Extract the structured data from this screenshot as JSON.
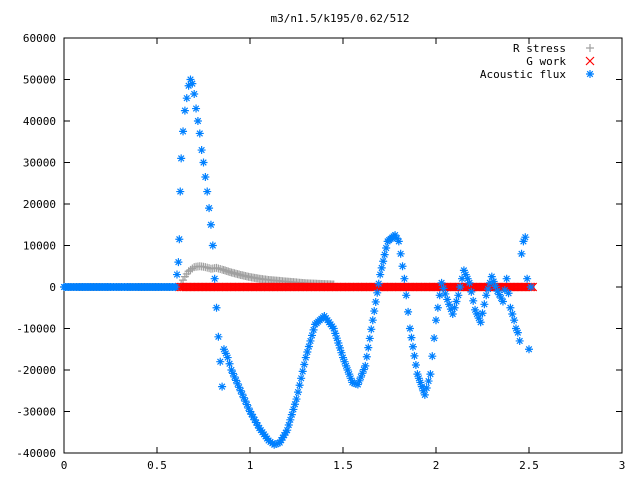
{
  "colors": {
    "r_stress": "#a0a0a0",
    "g_work": "#ff0000",
    "acoustic_flux": "#0080ff",
    "axis": "#000000",
    "background": "#ffffff"
  },
  "chart_data": {
    "type": "scatter",
    "title": "m3/n1.5/k195/0.62/512",
    "xlabel": "",
    "ylabel": "",
    "xlim": [
      0,
      3
    ],
    "ylim": [
      -40000,
      60000
    ],
    "x_ticks": [
      0,
      0.5,
      1,
      1.5,
      2,
      2.5,
      3
    ],
    "x_tick_labels": [
      "0",
      "0.5",
      "1",
      "1.5",
      "2",
      "2.5",
      "3"
    ],
    "y_ticks": [
      -40000,
      -30000,
      -20000,
      -10000,
      0,
      10000,
      20000,
      30000,
      40000,
      50000,
      60000
    ],
    "y_tick_labels": [
      "-40000",
      "-30000",
      "-20000",
      "-10000",
      "0",
      "10000",
      "20000",
      "30000",
      "40000",
      "50000",
      "60000"
    ],
    "grid": false,
    "legend_position": "top-right",
    "series": [
      {
        "name": "R stress",
        "marker": "plus",
        "color": "#a0a0a0",
        "points": [
          [
            0.0,
            0
          ],
          [
            0.3,
            0
          ],
          [
            0.6,
            0
          ],
          [
            0.62,
            0
          ],
          [
            0.63,
            800
          ],
          [
            0.65,
            2500
          ],
          [
            0.67,
            3800
          ],
          [
            0.7,
            4800
          ],
          [
            0.73,
            5000
          ],
          [
            0.76,
            4800
          ],
          [
            0.79,
            4400
          ],
          [
            0.82,
            4600
          ],
          [
            0.85,
            4200
          ],
          [
            0.9,
            3500
          ],
          [
            0.95,
            2900
          ],
          [
            1.0,
            2400
          ],
          [
            1.05,
            2000
          ],
          [
            1.1,
            1700
          ],
          [
            1.15,
            1500
          ],
          [
            1.2,
            1300
          ],
          [
            1.25,
            1100
          ],
          [
            1.3,
            900
          ],
          [
            1.35,
            800
          ],
          [
            1.4,
            700
          ],
          [
            1.45,
            600
          ]
        ]
      },
      {
        "name": "G work",
        "marker": "cross",
        "color": "#ff0000",
        "points": [
          [
            0.62,
            0
          ],
          [
            0.8,
            0
          ],
          [
            1.0,
            0
          ],
          [
            1.2,
            0
          ],
          [
            1.4,
            0
          ],
          [
            1.6,
            0
          ],
          [
            1.8,
            0
          ],
          [
            2.0,
            0
          ],
          [
            2.2,
            0
          ],
          [
            2.4,
            0
          ],
          [
            2.52,
            0
          ]
        ]
      },
      {
        "name": "Acoustic flux",
        "marker": "asterisk",
        "color": "#0080ff",
        "points": [
          [
            0.0,
            0
          ],
          [
            0.1,
            0
          ],
          [
            0.2,
            0
          ],
          [
            0.3,
            0
          ],
          [
            0.4,
            0
          ],
          [
            0.5,
            0
          ],
          [
            0.6,
            0
          ],
          [
            0.615,
            6000
          ],
          [
            0.62,
            11500
          ],
          [
            0.625,
            23000
          ],
          [
            0.63,
            31000
          ],
          [
            0.64,
            37500
          ],
          [
            0.65,
            42500
          ],
          [
            0.66,
            45500
          ],
          [
            0.67,
            48500
          ],
          [
            0.68,
            50000
          ],
          [
            0.69,
            49000
          ],
          [
            0.7,
            46500
          ],
          [
            0.71,
            43000
          ],
          [
            0.72,
            40000
          ],
          [
            0.73,
            37000
          ],
          [
            0.74,
            33000
          ],
          [
            0.75,
            30000
          ],
          [
            0.76,
            26500
          ],
          [
            0.77,
            23000
          ],
          [
            0.78,
            19000
          ],
          [
            0.79,
            15000
          ],
          [
            0.8,
            10000
          ],
          [
            0.81,
            2000
          ],
          [
            0.82,
            -5000
          ],
          [
            0.83,
            -12000
          ],
          [
            0.84,
            -18000
          ],
          [
            0.85,
            -24000
          ],
          [
            0.86,
            -15000
          ],
          [
            0.88,
            -17000
          ],
          [
            0.9,
            -20000
          ],
          [
            0.95,
            -25000
          ],
          [
            1.0,
            -30000
          ],
          [
            1.05,
            -34000
          ],
          [
            1.1,
            -37000
          ],
          [
            1.13,
            -38000
          ],
          [
            1.16,
            -37500
          ],
          [
            1.2,
            -34500
          ],
          [
            1.25,
            -27000
          ],
          [
            1.3,
            -17000
          ],
          [
            1.35,
            -9000
          ],
          [
            1.4,
            -7000
          ],
          [
            1.45,
            -10000
          ],
          [
            1.5,
            -17000
          ],
          [
            1.55,
            -23000
          ],
          [
            1.58,
            -23500
          ],
          [
            1.62,
            -19000
          ],
          [
            1.66,
            -8000
          ],
          [
            1.7,
            3000
          ],
          [
            1.74,
            11000
          ],
          [
            1.78,
            12500
          ],
          [
            1.8,
            11000
          ],
          [
            1.83,
            2000
          ],
          [
            1.86,
            -10000
          ],
          [
            1.9,
            -21000
          ],
          [
            1.94,
            -26000
          ],
          [
            1.97,
            -21000
          ],
          [
            2.0,
            -8000
          ],
          [
            2.03,
            1000
          ],
          [
            2.06,
            -3000
          ],
          [
            2.09,
            -6500
          ],
          [
            2.12,
            -2000
          ],
          [
            2.15,
            4000
          ],
          [
            2.18,
            1000
          ],
          [
            2.21,
            -5500
          ],
          [
            2.24,
            -8500
          ],
          [
            2.27,
            -2000
          ],
          [
            2.3,
            2500
          ],
          [
            2.33,
            -1000
          ],
          [
            2.36,
            -3500
          ],
          [
            2.38,
            2000
          ],
          [
            2.4,
            -5000
          ],
          [
            2.42,
            -8000
          ],
          [
            2.43,
            -10000
          ],
          [
            2.44,
            -11000
          ],
          [
            2.45,
            -13000
          ],
          [
            2.46,
            8000
          ],
          [
            2.47,
            11000
          ],
          [
            2.48,
            12000
          ],
          [
            2.49,
            2000
          ],
          [
            2.5,
            -15000
          ],
          [
            2.51,
            0
          ]
        ]
      }
    ]
  }
}
